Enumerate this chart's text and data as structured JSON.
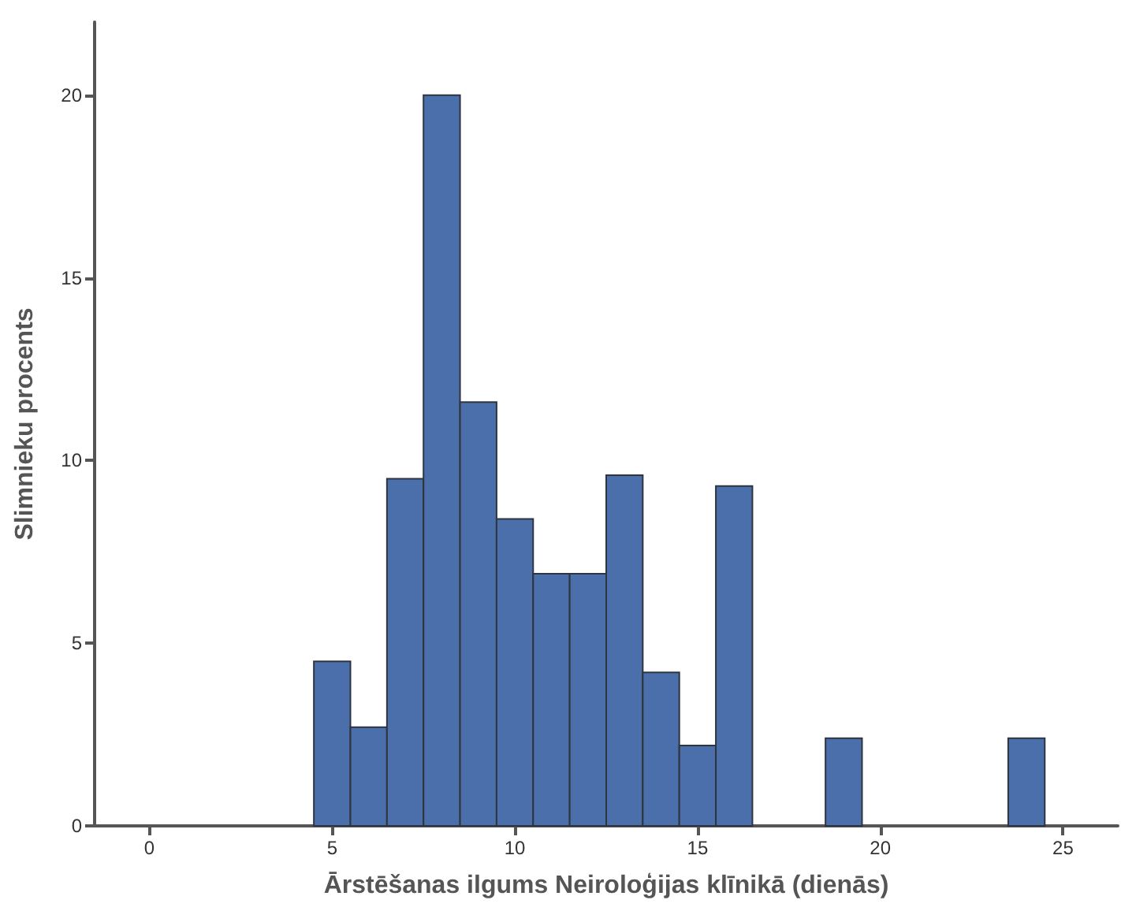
{
  "chart_data": {
    "type": "histogram",
    "xlabel": "Ārstēšanas ilgums Neiroloģijas klīnikā (dienās)",
    "ylabel": "Slimnieku procents",
    "bins": [
      4.5,
      5.5,
      6.5,
      7.5,
      8.5,
      9.5,
      10.5,
      11.5,
      12.5,
      13.5,
      14.5,
      15.5,
      16.5,
      17.5,
      18.5,
      19.5,
      20.5,
      21.5,
      22.5,
      23.5,
      24.5
    ],
    "values": [
      4.5,
      2.7,
      9.5,
      20,
      11.6,
      8.4,
      6.9,
      6.9,
      9.6,
      4.2,
      2.2,
      9.3,
      0,
      0,
      2.4,
      0,
      0,
      0,
      0,
      2.4
    ],
    "color": "#4a6fab",
    "xlim": [
      -1.5,
      26.5
    ],
    "xticks": [
      0,
      5,
      10,
      15,
      20,
      25
    ],
    "ylim": [
      0,
      22
    ],
    "yticks": [
      0,
      5,
      10,
      15,
      20
    ],
    "grid": false
  }
}
